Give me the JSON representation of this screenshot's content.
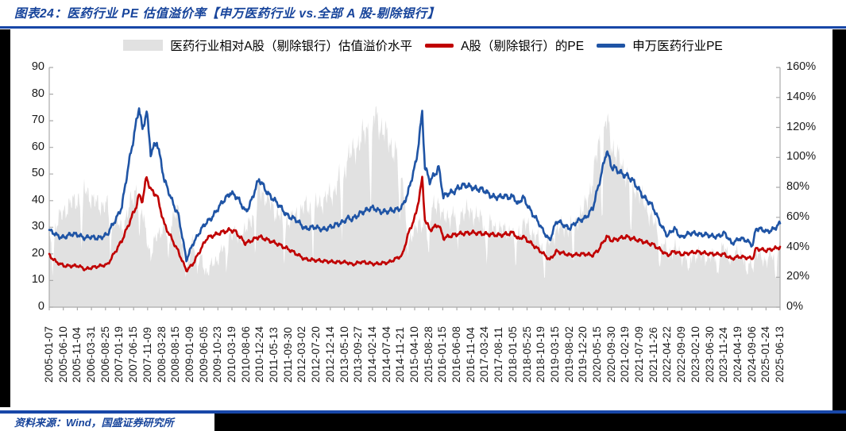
{
  "header": {
    "title": "图表24：医药行业 PE 估值溢价率【申万医药行业 vs.全部 A 股-剔除银行】"
  },
  "footer": {
    "source": "资料来源：Wind，国盛证券研究所"
  },
  "legend": [
    {
      "label": "医药行业相对A股（剔除银行）估值溢价水平",
      "type": "area",
      "color": "#E1E1E1"
    },
    {
      "label": "A股（剔除银行）的PE",
      "type": "line",
      "color": "#C00000"
    },
    {
      "label": "申万医药行业PE",
      "type": "line",
      "color": "#1F54A5"
    }
  ],
  "chart_data": {
    "type": "line",
    "title": "医药行业 PE 估值溢价率（申万医药行业 vs. 全部A股-剔除银行）",
    "left_axis": {
      "min": 0,
      "max": 90,
      "step": 10,
      "tick_labels": [
        "0",
        "10",
        "20",
        "30",
        "40",
        "50",
        "60",
        "70",
        "80",
        "90"
      ]
    },
    "right_axis": {
      "min": 0,
      "max": 160,
      "step": 20,
      "suffix": "%",
      "tick_labels": [
        "0%",
        "20%",
        "40%",
        "60%",
        "80%",
        "100%",
        "120%",
        "140%",
        "160%"
      ]
    },
    "grid": "off",
    "legend_position": "top",
    "x_tick_labels": [
      "2005-01-07",
      "2005-06-10",
      "2005-11-04",
      "2006-03-31",
      "2006-08-25",
      "2007-01-19",
      "2007-06-15",
      "2007-11-09",
      "2008-03-28",
      "2008-08-15",
      "2009-01-09",
      "2009-06-05",
      "2009-10-23",
      "2010-03-19",
      "2010-08-06",
      "2010-12-24",
      "2011-05-13",
      "2011-09-30",
      "2012-03-02",
      "2012-07-20",
      "2012-12-14",
      "2013-05-10",
      "2013-09-27",
      "2014-02-14",
      "2014-07-04",
      "2014-11-21",
      "2015-04-10",
      "2015-08-28",
      "2016-01-15",
      "2016-06-08",
      "2016-11-04",
      "2017-03-24",
      "2017-08-11",
      "2018-01-05",
      "2018-05-25",
      "2018-10-19",
      "2019-03-15",
      "2019-08-02",
      "2019-12-20",
      "2020-05-15",
      "2020-09-30",
      "2021-02-19",
      "2021-07-09",
      "2021-11-26",
      "2022-04-22",
      "2022-09-09",
      "2023-02-10",
      "2023-06-30",
      "2023-11-24",
      "2024-04-19",
      "2024-09-06",
      "2025-01-24",
      "2025-06-13"
    ],
    "series": [
      {
        "name": "医药行业相对A股（剔除银行）估值溢价水平",
        "axis": "right",
        "type": "area",
        "color": "#E1E1E1"
      },
      {
        "name": "A股（剔除银行）的PE",
        "axis": "left",
        "type": "line",
        "color": "#C00000"
      },
      {
        "name": "申万医药行业PE",
        "axis": "left",
        "type": "line",
        "color": "#1F54A5"
      }
    ],
    "keypoints": [
      {
        "date": "2005-01-07",
        "pharma_pe": 28.5,
        "a_pe": 19.5,
        "premium_pct": 42
      },
      {
        "date": "2005-03-18",
        "pharma_pe": 27.0,
        "a_pe": 17.0,
        "premium_pct": 55
      },
      {
        "date": "2005-06-10",
        "pharma_pe": 26.5,
        "a_pe": 15.5,
        "premium_pct": 65
      },
      {
        "date": "2005-11-04",
        "pharma_pe": 27.5,
        "a_pe": 15.5,
        "premium_pct": 73
      },
      {
        "date": "2006-01-06",
        "pharma_pe": 26.0,
        "a_pe": 14.2,
        "premium_pct": 80
      },
      {
        "date": "2006-03-31",
        "pharma_pe": 26.0,
        "a_pe": 15.0,
        "premium_pct": 70
      },
      {
        "date": "2006-08-25",
        "pharma_pe": 27.0,
        "a_pe": 16.0,
        "premium_pct": 67
      },
      {
        "date": "2007-01-19",
        "pharma_pe": 38.0,
        "a_pe": 25.0,
        "premium_pct": 52
      },
      {
        "date": "2007-06-15",
        "pharma_pe": 70.0,
        "a_pe": 38.0,
        "premium_pct": 80
      },
      {
        "date": "2007-07-13",
        "pharma_pe": 76.0,
        "a_pe": 42.0,
        "premium_pct": 81
      },
      {
        "date": "2007-08-17",
        "pharma_pe": 66.0,
        "a_pe": 40.0,
        "premium_pct": 62
      },
      {
        "date": "2007-09-28",
        "pharma_pe": 73.0,
        "a_pe": 49.0,
        "premium_pct": 49
      },
      {
        "date": "2007-11-09",
        "pharma_pe": 58.0,
        "a_pe": 44.0,
        "premium_pct": 32
      },
      {
        "date": "2008-01-11",
        "pharma_pe": 63.0,
        "a_pe": 42.0,
        "premium_pct": 50
      },
      {
        "date": "2008-03-28",
        "pharma_pe": 47.0,
        "a_pe": 31.0,
        "premium_pct": 52
      },
      {
        "date": "2008-08-15",
        "pharma_pe": 35.0,
        "a_pe": 21.0,
        "premium_pct": 64
      },
      {
        "date": "2008-11-07",
        "pharma_pe": 17.5,
        "a_pe": 13.8,
        "premium_pct": 20
      },
      {
        "date": "2009-01-09",
        "pharma_pe": 24.0,
        "a_pe": 16.0,
        "premium_pct": 45
      },
      {
        "date": "2009-06-05",
        "pharma_pe": 32.0,
        "a_pe": 26.0,
        "premium_pct": 23
      },
      {
        "date": "2009-10-23",
        "pharma_pe": 38.0,
        "a_pe": 28.0,
        "premium_pct": 36
      },
      {
        "date": "2010-01-29",
        "pharma_pe": 43.5,
        "a_pe": 29.0,
        "premium_pct": 50
      },
      {
        "date": "2010-03-19",
        "pharma_pe": 42.0,
        "a_pe": 28.5,
        "premium_pct": 47
      },
      {
        "date": "2010-07-02",
        "pharma_pe": 36.0,
        "a_pe": 24.0,
        "premium_pct": 50
      },
      {
        "date": "2010-08-06",
        "pharma_pe": 38.0,
        "a_pe": 24.5,
        "premium_pct": 55
      },
      {
        "date": "2010-11-19",
        "pharma_pe": 47.5,
        "a_pe": 26.5,
        "premium_pct": 79
      },
      {
        "date": "2010-12-24",
        "pharma_pe": 46.0,
        "a_pe": 26.0,
        "premium_pct": 77
      },
      {
        "date": "2011-05-13",
        "pharma_pe": 39.0,
        "a_pe": 24.0,
        "premium_pct": 63
      },
      {
        "date": "2011-09-30",
        "pharma_pe": 34.0,
        "a_pe": 21.5,
        "premium_pct": 58
      },
      {
        "date": "2012-03-02",
        "pharma_pe": 30.0,
        "a_pe": 18.0,
        "premium_pct": 67
      },
      {
        "date": "2012-07-20",
        "pharma_pe": 29.5,
        "a_pe": 17.5,
        "premium_pct": 69
      },
      {
        "date": "2012-12-14",
        "pharma_pe": 30.0,
        "a_pe": 17.0,
        "premium_pct": 76
      },
      {
        "date": "2013-05-10",
        "pharma_pe": 33.5,
        "a_pe": 16.8,
        "premium_pct": 99
      },
      {
        "date": "2013-06-28",
        "pharma_pe": 32.5,
        "a_pe": 16.0,
        "premium_pct": 103
      },
      {
        "date": "2013-09-27",
        "pharma_pe": 36.0,
        "a_pe": 17.0,
        "premium_pct": 112
      },
      {
        "date": "2014-02-14",
        "pharma_pe": 37.0,
        "a_pe": 16.2,
        "premium_pct": 128
      },
      {
        "date": "2014-07-04",
        "pharma_pe": 35.5,
        "a_pe": 16.8,
        "premium_pct": 111
      },
      {
        "date": "2014-11-21",
        "pharma_pe": 38.0,
        "a_pe": 19.5,
        "premium_pct": 95
      },
      {
        "date": "2015-01-16",
        "pharma_pe": 42.0,
        "a_pe": 27.0,
        "premium_pct": 38
      },
      {
        "date": "2015-04-10",
        "pharma_pe": 55.0,
        "a_pe": 35.0,
        "premium_pct": 57
      },
      {
        "date": "2015-06-12",
        "pharma_pe": 73.0,
        "a_pe": 48.0,
        "premium_pct": 52
      },
      {
        "date": "2015-07-10",
        "pharma_pe": 52.0,
        "a_pe": 33.0,
        "premium_pct": 58
      },
      {
        "date": "2015-08-28",
        "pharma_pe": 47.0,
        "a_pe": 29.0,
        "premium_pct": 62
      },
      {
        "date": "2015-11-27",
        "pharma_pe": 53.0,
        "a_pe": 31.0,
        "premium_pct": 71
      },
      {
        "date": "2016-01-15",
        "pharma_pe": 41.0,
        "a_pe": 26.0,
        "premium_pct": 58
      },
      {
        "date": "2016-06-08",
        "pharma_pe": 45.0,
        "a_pe": 27.5,
        "premium_pct": 64
      },
      {
        "date": "2016-11-04",
        "pharma_pe": 45.5,
        "a_pe": 28.0,
        "premium_pct": 63
      },
      {
        "date": "2017-03-24",
        "pharma_pe": 43.0,
        "a_pe": 27.5,
        "premium_pct": 56
      },
      {
        "date": "2017-08-11",
        "pharma_pe": 41.0,
        "a_pe": 27.0,
        "premium_pct": 52
      },
      {
        "date": "2018-01-05",
        "pharma_pe": 42.0,
        "a_pe": 28.0,
        "premium_pct": 50
      },
      {
        "date": "2018-02-09",
        "pharma_pe": 38.0,
        "a_pe": 25.5,
        "premium_pct": 49
      },
      {
        "date": "2018-04-06",
        "pharma_pe": 41.0,
        "a_pe": 26.5,
        "premium_pct": 55
      },
      {
        "date": "2018-05-25",
        "pharma_pe": 38.5,
        "a_pe": 25.0,
        "premium_pct": 54
      },
      {
        "date": "2018-10-19",
        "pharma_pe": 29.0,
        "a_pe": 20.5,
        "premium_pct": 41
      },
      {
        "date": "2019-01-04",
        "pharma_pe": 25.5,
        "a_pe": 17.8,
        "premium_pct": 43
      },
      {
        "date": "2019-03-15",
        "pharma_pe": 32.0,
        "a_pe": 21.0,
        "premium_pct": 52
      },
      {
        "date": "2019-08-02",
        "pharma_pe": 30.0,
        "a_pe": 19.5,
        "premium_pct": 54
      },
      {
        "date": "2019-12-20",
        "pharma_pe": 33.5,
        "a_pe": 20.0,
        "premium_pct": 65
      },
      {
        "date": "2020-03-20",
        "pharma_pe": 37.0,
        "a_pe": 19.5,
        "premium_pct": 85
      },
      {
        "date": "2020-05-15",
        "pharma_pe": 45.0,
        "a_pe": 21.5,
        "premium_pct": 109
      },
      {
        "date": "2020-08-07",
        "pharma_pe": 59.5,
        "a_pe": 26.5,
        "premium_pct": 125
      },
      {
        "date": "2020-09-30",
        "pharma_pe": 52.0,
        "a_pe": 25.0,
        "premium_pct": 108
      },
      {
        "date": "2021-02-19",
        "pharma_pe": 50.0,
        "a_pe": 26.5,
        "premium_pct": 89
      },
      {
        "date": "2021-07-09",
        "pharma_pe": 44.0,
        "a_pe": 25.0,
        "premium_pct": 76
      },
      {
        "date": "2021-11-26",
        "pharma_pe": 37.0,
        "a_pe": 23.5,
        "premium_pct": 57
      },
      {
        "date": "2022-04-22",
        "pharma_pe": 26.5,
        "a_pe": 19.5,
        "premium_pct": 36
      },
      {
        "date": "2022-07-01",
        "pharma_pe": 29.5,
        "a_pe": 21.0,
        "premium_pct": 40
      },
      {
        "date": "2022-09-09",
        "pharma_pe": 26.5,
        "a_pe": 19.8,
        "premium_pct": 34
      },
      {
        "date": "2023-02-10",
        "pharma_pe": 28.0,
        "a_pe": 20.8,
        "premium_pct": 35
      },
      {
        "date": "2023-06-30",
        "pharma_pe": 26.5,
        "a_pe": 20.0,
        "premium_pct": 33
      },
      {
        "date": "2023-11-24",
        "pharma_pe": 27.5,
        "a_pe": 19.8,
        "premium_pct": 39
      },
      {
        "date": "2024-02-02",
        "pharma_pe": 24.0,
        "a_pe": 18.2,
        "premium_pct": 32
      },
      {
        "date": "2024-04-19",
        "pharma_pe": 26.0,
        "a_pe": 19.0,
        "premium_pct": 37
      },
      {
        "date": "2024-09-06",
        "pharma_pe": 23.5,
        "a_pe": 18.3,
        "premium_pct": 28
      },
      {
        "date": "2024-10-11",
        "pharma_pe": 30.0,
        "a_pe": 22.0,
        "premium_pct": 36
      },
      {
        "date": "2025-01-24",
        "pharma_pe": 28.0,
        "a_pe": 21.3,
        "premium_pct": 31
      },
      {
        "date": "2025-06-13",
        "pharma_pe": 31.3,
        "a_pe": 22.5,
        "premium_pct": 39
      }
    ]
  }
}
